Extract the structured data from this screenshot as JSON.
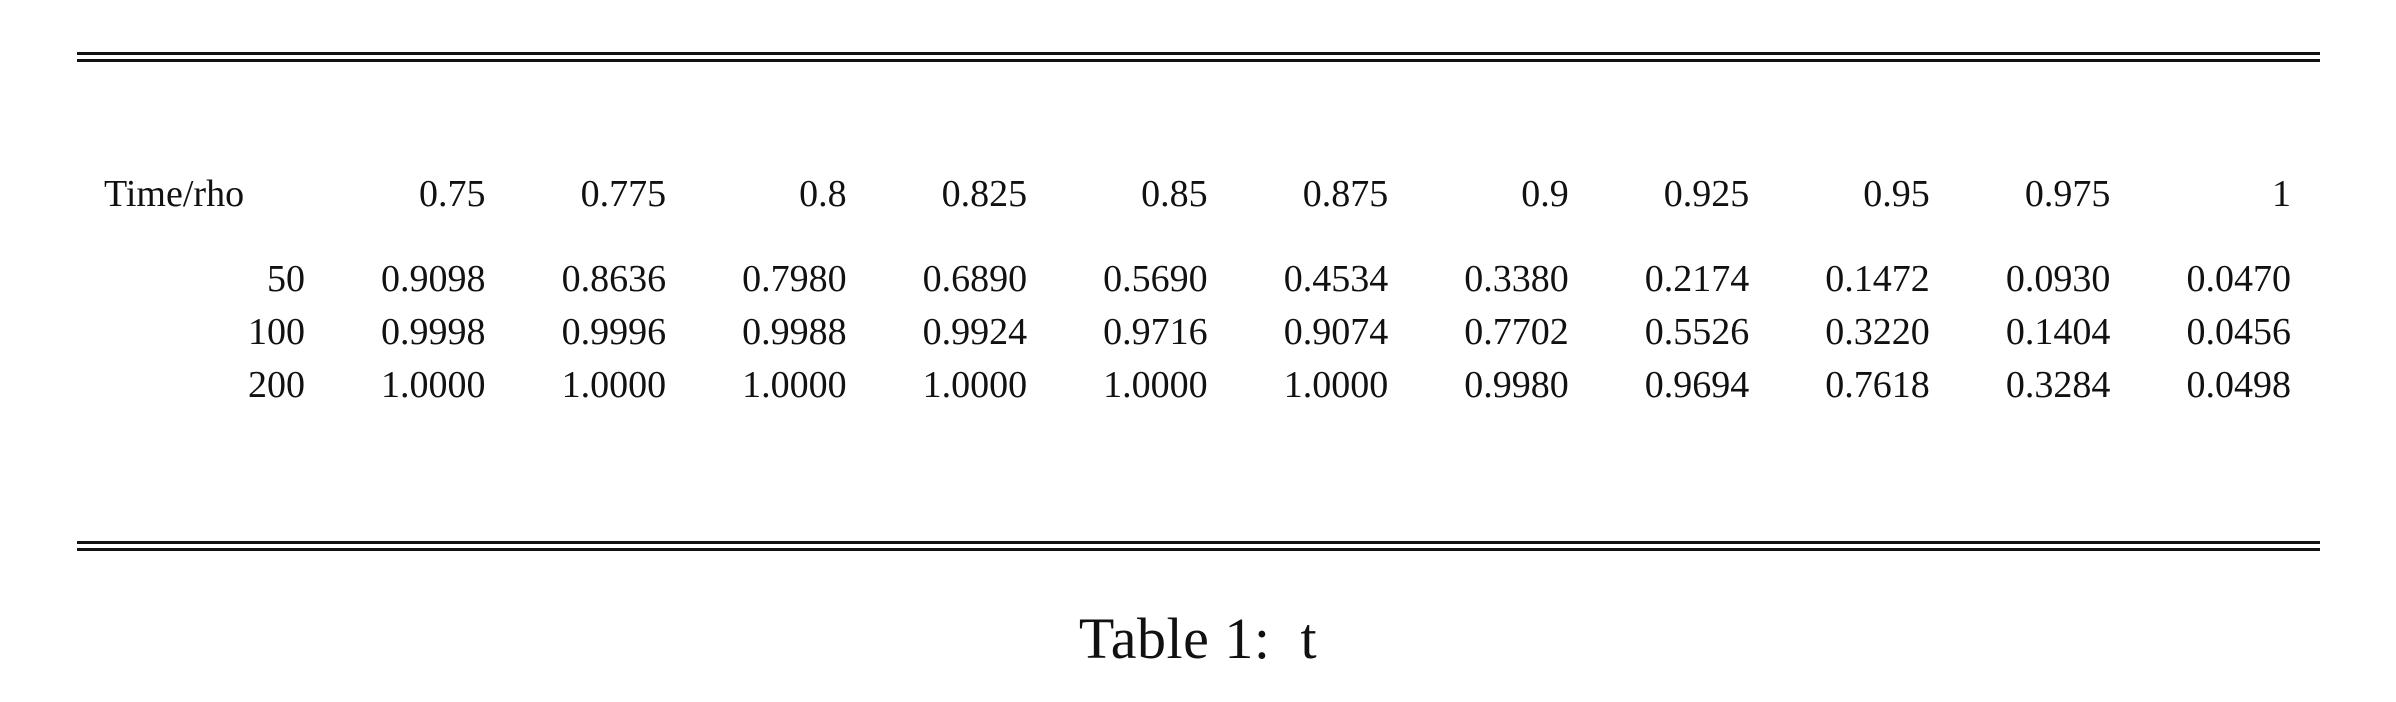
{
  "table": {
    "stub_header": "Time/rho",
    "columns": [
      "0.75",
      "0.775",
      "0.8",
      "0.825",
      "0.85",
      "0.875",
      "0.9",
      "0.925",
      "0.95",
      "0.975",
      "1"
    ],
    "rows": [
      {
        "time": "50",
        "values": [
          "0.9098",
          "0.8636",
          "0.7980",
          "0.6890",
          "0.5690",
          "0.4534",
          "0.3380",
          "0.2174",
          "0.1472",
          "0.0930",
          "0.0470"
        ]
      },
      {
        "time": "100",
        "values": [
          "0.9998",
          "0.9996",
          "0.9988",
          "0.9924",
          "0.9716",
          "0.9074",
          "0.7702",
          "0.5526",
          "0.3220",
          "0.1404",
          "0.0456"
        ]
      },
      {
        "time": "200",
        "values": [
          "1.0000",
          "1.0000",
          "1.0000",
          "1.0000",
          "1.0000",
          "1.0000",
          "0.9980",
          "0.9694",
          "0.7618",
          "0.3284",
          "0.0498"
        ]
      }
    ]
  },
  "caption": {
    "label": "Table 1:",
    "text": "t"
  }
}
